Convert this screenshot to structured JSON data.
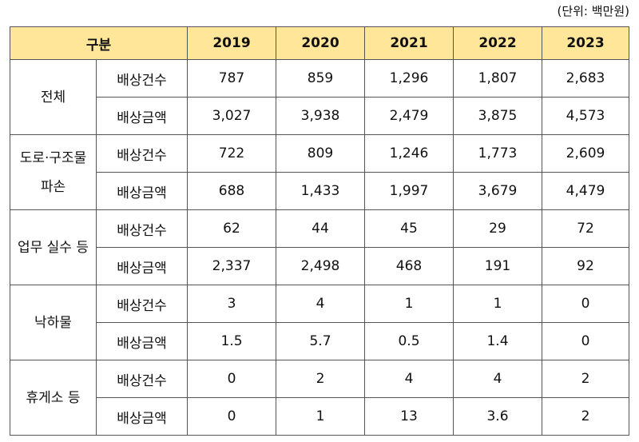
{
  "unit_label": "(단위: 백만원)",
  "header": {
    "category": "구분",
    "years": [
      "2019",
      "2020",
      "2021",
      "2022",
      "2023"
    ]
  },
  "groups": [
    {
      "label_lines": [
        "전체"
      ],
      "rows": [
        {
          "label": "배상건수",
          "values": [
            "787",
            "859",
            "1,296",
            "1,807",
            "2,683"
          ]
        },
        {
          "label": "배상금액",
          "values": [
            "3,027",
            "3,938",
            "2,479",
            "3,875",
            "4,573"
          ]
        }
      ]
    },
    {
      "label_lines": [
        "도로·구조물",
        "파손"
      ],
      "rows": [
        {
          "label": "배상건수",
          "values": [
            "722",
            "809",
            "1,246",
            "1,773",
            "2,609"
          ]
        },
        {
          "label": "배상금액",
          "values": [
            "688",
            "1,433",
            "1,997",
            "3,679",
            "4,479"
          ]
        }
      ]
    },
    {
      "label_lines": [
        "업무 실수 등"
      ],
      "rows": [
        {
          "label": "배상건수",
          "values": [
            "62",
            "44",
            "45",
            "29",
            "72"
          ]
        },
        {
          "label": "배상금액",
          "values": [
            "2,337",
            "2,498",
            "468",
            "191",
            "92"
          ]
        }
      ]
    },
    {
      "label_lines": [
        "낙하물"
      ],
      "rows": [
        {
          "label": "배상건수",
          "values": [
            "3",
            "4",
            "1",
            "1",
            "0"
          ]
        },
        {
          "label": "배상금액",
          "values": [
            "1.5",
            "5.7",
            "0.5",
            "1.4",
            "0"
          ]
        }
      ]
    },
    {
      "label_lines": [
        "휴게소 등"
      ],
      "rows": [
        {
          "label": "배상건수",
          "values": [
            "0",
            "2",
            "4",
            "4",
            "2"
          ]
        },
        {
          "label": "배상금액",
          "values": [
            "0",
            "1",
            "13",
            "3.6",
            "2"
          ]
        }
      ]
    }
  ],
  "colors": {
    "header_bg": "#FFE699",
    "border": "#555555"
  }
}
